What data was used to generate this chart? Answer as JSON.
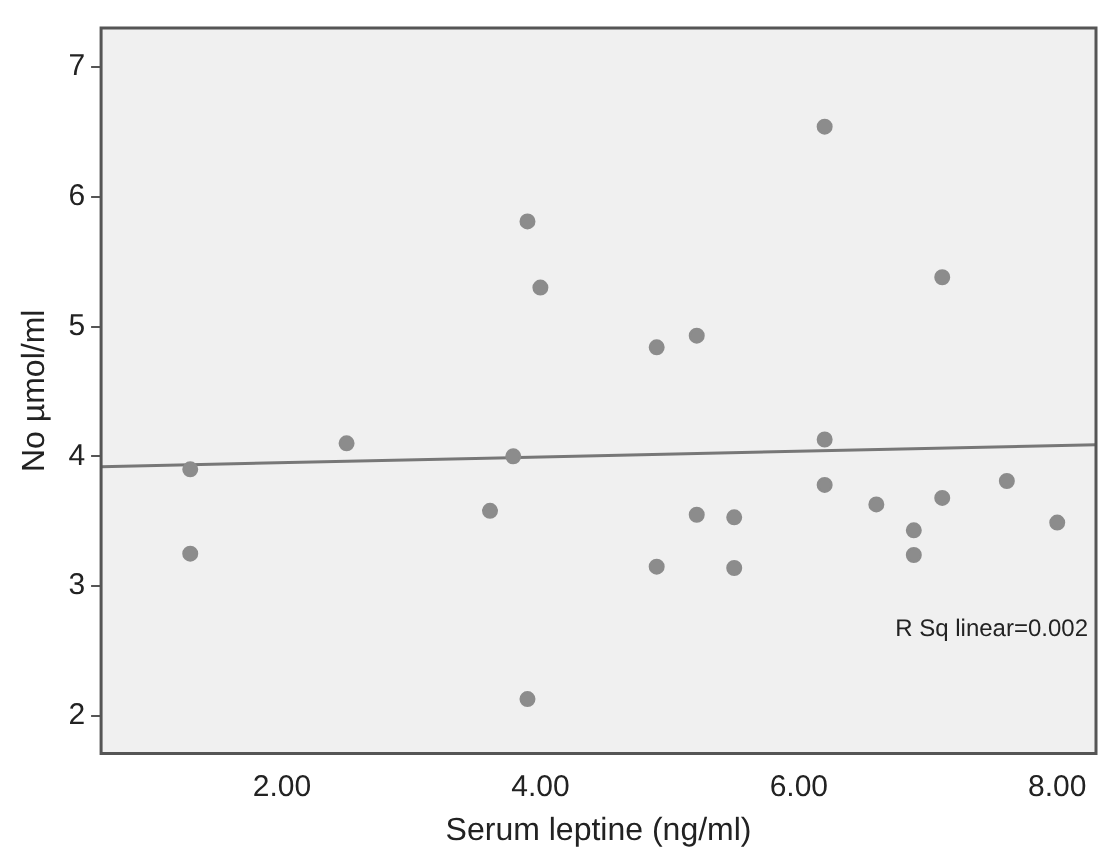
{
  "chart_data": {
    "type": "scatter",
    "xlabel": "Serum leptine (ng/ml)",
    "ylabel": "No µmol/ml",
    "xlim": [
      0.6,
      8.3
    ],
    "ylim": [
      1.71,
      7.3
    ],
    "xticks": [
      {
        "value": 2,
        "label": "2.00"
      },
      {
        "value": 4,
        "label": "4.00"
      },
      {
        "value": 6,
        "label": "6.00"
      },
      {
        "value": 8,
        "label": "8.00"
      }
    ],
    "yticks": [
      2,
      3,
      4,
      5,
      6,
      7
    ],
    "marker": "circle",
    "grid": false,
    "legend": false,
    "annotations": [
      "R Sq linear=0.002"
    ],
    "series": [
      {
        "color": "#8c8c8c",
        "x": [
          1.29,
          1.29,
          2.5,
          3.79,
          3.61,
          3.9,
          4.0,
          3.9,
          4.9,
          5.21,
          5.21,
          5.5,
          4.9,
          5.5,
          6.2,
          6.2,
          6.2,
          6.6,
          6.89,
          6.89,
          7.11,
          7.11,
          7.61,
          8.0
        ],
        "values": [
          3.9,
          3.25,
          4.1,
          4.0,
          3.58,
          5.81,
          5.3,
          2.13,
          4.84,
          4.93,
          3.55,
          3.53,
          3.15,
          3.14,
          6.54,
          4.13,
          3.78,
          3.63,
          3.43,
          3.24,
          3.68,
          5.38,
          3.81,
          3.49
        ]
      },
      {
        "type": "line",
        "color": "#777777",
        "marker": "none",
        "x": [
          0.6,
          8.3
        ],
        "values": [
          3.92,
          4.09
        ]
      }
    ]
  }
}
